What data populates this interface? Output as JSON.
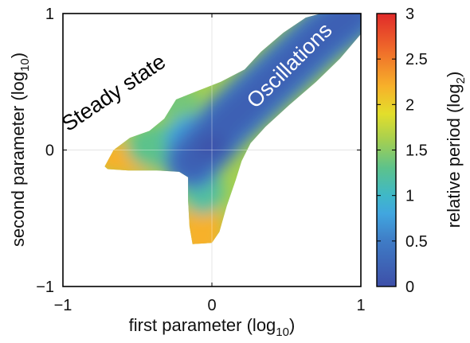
{
  "chart_data": {
    "type": "heatmap",
    "title": "",
    "xlabel": "first parameter (log",
    "xlabel_sub": "10",
    "xlabel_close": ")",
    "ylabel": "second parameter (log",
    "ylabel_sub": "10",
    "ylabel_close": ")",
    "xlim": [
      -1,
      1
    ],
    "ylim": [
      -1,
      1
    ],
    "xticks": [
      {
        "value": -1,
        "label": "−1"
      },
      {
        "value": 0,
        "label": "0"
      },
      {
        "value": 1,
        "label": "1"
      }
    ],
    "yticks": [
      {
        "value": -1,
        "label": "−1"
      },
      {
        "value": 0,
        "label": "0"
      },
      {
        "value": 1,
        "label": "1"
      }
    ],
    "grid": "lines at x = 0 and y = 0",
    "colorbar": {
      "label": "relative period (log",
      "label_sub": "2",
      "label_close": ")",
      "range": [
        0,
        3
      ],
      "ticks": [
        {
          "value": 0,
          "label": "0"
        },
        {
          "value": 0.5,
          "label": "0.5"
        },
        {
          "value": 1,
          "label": "1"
        },
        {
          "value": 1.5,
          "label": "1.5"
        },
        {
          "value": 2,
          "label": "2"
        },
        {
          "value": 2.5,
          "label": "2.5"
        },
        {
          "value": 3,
          "label": "3"
        }
      ],
      "stops": [
        {
          "value": 0.0,
          "color": "#3d4fa8"
        },
        {
          "value": 0.5,
          "color": "#3f7cc6"
        },
        {
          "value": 0.8,
          "color": "#41a6df"
        },
        {
          "value": 1.0,
          "color": "#3fb8c8"
        },
        {
          "value": 1.3,
          "color": "#5cc28c"
        },
        {
          "value": 1.6,
          "color": "#a3cf52"
        },
        {
          "value": 1.9,
          "color": "#e3de2b"
        },
        {
          "value": 2.2,
          "color": "#f7b12a"
        },
        {
          "value": 2.6,
          "color": "#ef6b2a"
        },
        {
          "value": 3.0,
          "color": "#e02a2a"
        }
      ]
    },
    "regions": [
      {
        "name": "Steady state",
        "label": "Steady state",
        "label_rotation_deg": -34,
        "label_center": [
          -0.66,
          0.42
        ],
        "label_color": "#000000"
      },
      {
        "name": "Oscillations",
        "label": "Oscillations",
        "label_rotation_deg": -45,
        "label_center": [
          0.52,
          0.62
        ],
        "label_color": "#ffffff"
      }
    ],
    "oscillation_band": {
      "centerline": [
        [
          -0.13,
          -0.08
        ],
        [
          0.1,
          0.2
        ],
        [
          0.4,
          0.5
        ],
        [
          0.72,
          0.82
        ],
        [
          0.93,
          1.0
        ]
      ],
      "outer_boundary": [
        [
          -0.72,
          -0.12
        ],
        [
          -0.66,
          0.0
        ],
        [
          -0.55,
          0.09
        ],
        [
          -0.42,
          0.14
        ],
        [
          -0.32,
          0.23
        ],
        [
          -0.24,
          0.37
        ],
        [
          -0.08,
          0.44
        ],
        [
          0.06,
          0.5
        ],
        [
          0.22,
          0.59
        ],
        [
          0.33,
          0.72
        ],
        [
          0.48,
          0.86
        ],
        [
          0.63,
          0.97
        ],
        [
          0.73,
          1.0
        ],
        [
          1.0,
          1.0
        ],
        [
          1.0,
          0.85
        ],
        [
          0.86,
          0.67
        ],
        [
          0.7,
          0.5
        ],
        [
          0.52,
          0.33
        ],
        [
          0.36,
          0.17
        ],
        [
          0.26,
          0.05
        ],
        [
          0.2,
          -0.08
        ],
        [
          0.16,
          -0.22
        ],
        [
          0.1,
          -0.41
        ],
        [
          0.05,
          -0.6
        ],
        [
          0.0,
          -0.68
        ],
        [
          -0.13,
          -0.69
        ],
        [
          -0.15,
          -0.56
        ],
        [
          -0.16,
          -0.37
        ],
        [
          -0.16,
          -0.2
        ],
        [
          -0.22,
          -0.16
        ],
        [
          -0.37,
          -0.15
        ],
        [
          -0.56,
          -0.15
        ],
        [
          -0.7,
          -0.14
        ]
      ]
    },
    "values_sampled": [
      {
        "x": 0.0,
        "y": 0.0,
        "value": 0.3
      },
      {
        "x": 0.5,
        "y": 0.5,
        "value": 0.3
      },
      {
        "x": 0.9,
        "y": 0.9,
        "value": 0.3
      },
      {
        "x": -0.3,
        "y": 0.0,
        "value": 1.2
      },
      {
        "x": -0.6,
        "y": -0.08,
        "value": 2.1
      },
      {
        "x": -0.2,
        "y": 0.33,
        "value": 1.3
      },
      {
        "x": -0.05,
        "y": -0.35,
        "value": 1.3
      },
      {
        "x": -0.05,
        "y": -0.6,
        "value": 2.1
      }
    ]
  }
}
